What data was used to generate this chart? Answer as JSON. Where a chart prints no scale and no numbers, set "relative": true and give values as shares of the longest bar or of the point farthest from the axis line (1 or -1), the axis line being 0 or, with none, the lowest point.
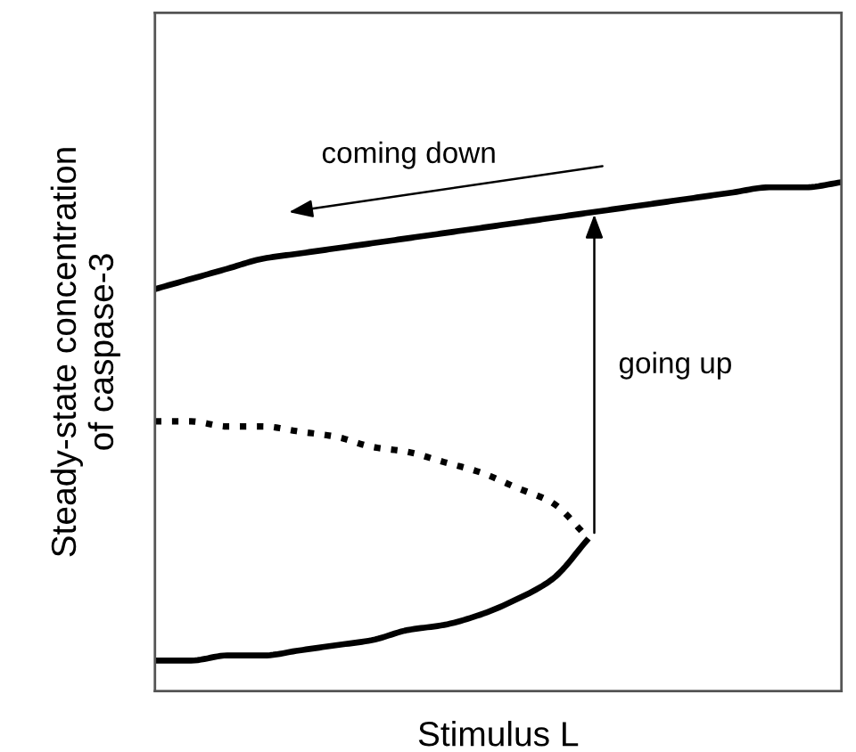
{
  "chart_data": {
    "type": "line",
    "relative": true,
    "xlabel": "Stimulus L",
    "ylabel": "Steady-state concentration\nof caspase-3",
    "tick_labels": false,
    "legend": false,
    "marker": "none",
    "categories": [
      null,
      null,
      null,
      null,
      null,
      null,
      null,
      null,
      null,
      null,
      null,
      null,
      null,
      null,
      null,
      null,
      null,
      null,
      null,
      null
    ],
    "series": [
      {
        "color": "#000000",
        "line_style": "solid",
        "values": [
          0.79,
          0.81,
          0.83,
          0.85,
          0.86,
          0.87,
          0.88,
          0.89,
          0.9,
          0.91,
          0.92,
          0.93,
          0.94,
          0.95,
          0.96,
          0.97,
          0.98,
          0.99,
          0.99,
          1.0
        ]
      },
      {
        "color": "#000000",
        "line_style": "dotted",
        "values": [
          0.53,
          0.53,
          0.52,
          0.52,
          0.51,
          0.5,
          0.48,
          0.47,
          0.45,
          0.43,
          0.4,
          0.37,
          0.3,
          null,
          null,
          null,
          null,
          null,
          null,
          null
        ]
      },
      {
        "color": "#000000",
        "line_style": "solid",
        "values": [
          0.06,
          0.06,
          0.07,
          0.07,
          0.08,
          0.09,
          0.1,
          0.12,
          0.13,
          0.15,
          0.18,
          0.22,
          0.3,
          null,
          null,
          null,
          null,
          null,
          null,
          null
        ]
      }
    ],
    "annotations": [
      "coming down",
      "going up"
    ]
  }
}
